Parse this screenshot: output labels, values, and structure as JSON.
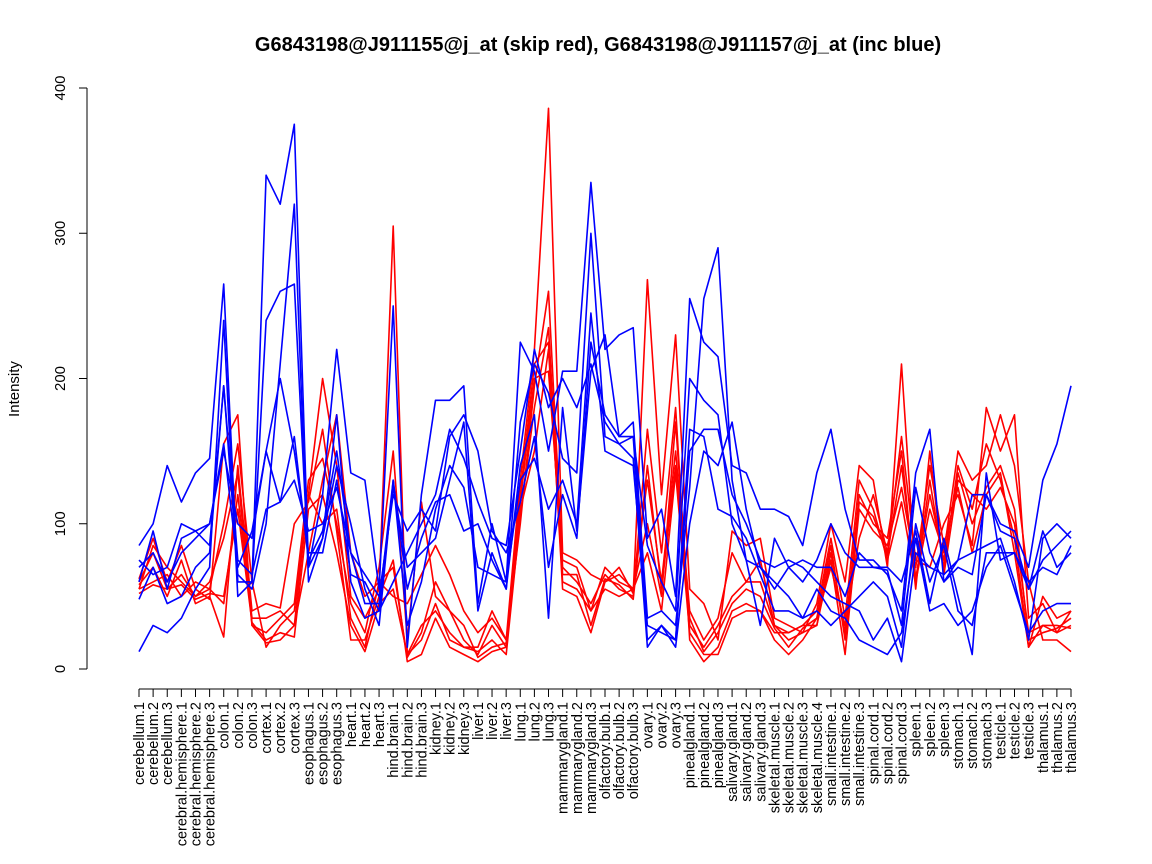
{
  "chart_data": {
    "type": "line",
    "title": "G6843198@J911155@j_at (skip red), G6843198@J911157@j_at (inc blue)",
    "xlabel": "",
    "ylabel": "Intensity",
    "ylim": [
      0,
      400
    ],
    "yticks": [
      0,
      100,
      200,
      300,
      400
    ],
    "grid": false,
    "categories": [
      "cerebellum.1",
      "cerebellum.2",
      "cerebellum.3",
      "cerebral.hemisphere.1",
      "cerebral.hemisphere.2",
      "cerebral.hemisphere.3",
      "colon.1",
      "colon.2",
      "colon.3",
      "cortex.1",
      "cortex.2",
      "cortex.3",
      "esophagus.1",
      "esophagus.2",
      "esophagus.3",
      "heart.1",
      "heart.2",
      "heart.3",
      "hind.brain.1",
      "hind.brain.2",
      "hind.brain.3",
      "kidney.1",
      "kidney.2",
      "kidney.3",
      "liver.1",
      "liver.2",
      "liver.3",
      "lung.1",
      "lung.2",
      "lung.3",
      "mammarygland.1",
      "mammarygland.2",
      "mammarygland.3",
      "olfactory.bulb.1",
      "olfactory.bulb.2",
      "olfactory.bulb.3",
      "ovary.1",
      "ovary.2",
      "ovary.3",
      "pinealgland.1",
      "pinealgland.2",
      "pinealgland.3",
      "salivary.gland.1",
      "salivary.gland.2",
      "salivary.gland.3",
      "skeletal.muscle.1",
      "skeletal.muscle.2",
      "skeletal.muscle.3",
      "skeletal.muscle.4",
      "small.intestine.1",
      "small.intestine.2",
      "small.intestine.3",
      "spinal.cord.1",
      "spinal.cord.2",
      "spinal.cord.3",
      "spleen.1",
      "spleen.2",
      "spleen.3",
      "stomach.1",
      "stomach.2",
      "stomach.3",
      "testicle.1",
      "testicle.2",
      "testicle.3",
      "thalamus.1",
      "thalamus.2",
      "thalamus.3"
    ],
    "series_colors": {
      "skip": "#ff0000",
      "inc": "#0000ff"
    },
    "series": [
      {
        "group": "skip",
        "values": [
          62,
          90,
          60,
          85,
          55,
          48,
          155,
          175,
          30,
          18,
          20,
          30,
          80,
          130,
          175,
          80,
          50,
          60,
          50,
          45,
          65,
          85,
          65,
          40,
          25,
          35,
          20,
          130,
          220,
          386,
          80,
          75,
          65,
          60,
          70,
          52,
          268,
          120,
          230,
          55,
          45,
          20,
          95,
          85,
          90,
          35,
          30,
          25,
          45,
          100,
          60,
          140,
          130,
          70,
          210,
          60,
          110,
          80,
          150,
          130,
          140,
          175,
          140,
          60,
          20,
          20,
          12
        ]
      },
      {
        "group": "skip",
        "values": [
          55,
          60,
          65,
          50,
          60,
          55,
          100,
          155,
          60,
          15,
          30,
          40,
          120,
          200,
          140,
          50,
          35,
          55,
          305,
          10,
          30,
          40,
          25,
          15,
          15,
          40,
          20,
          100,
          195,
          260,
          70,
          60,
          45,
          65,
          55,
          50,
          165,
          80,
          180,
          20,
          5,
          15,
          40,
          45,
          40,
          20,
          10,
          20,
          35,
          70,
          30,
          90,
          120,
          80,
          160,
          75,
          70,
          100,
          120,
          85,
          180,
          150,
          175,
          35,
          45,
          25,
          30
        ]
      },
      {
        "group": "skip",
        "values": [
          60,
          80,
          55,
          65,
          50,
          60,
          90,
          135,
          30,
          25,
          35,
          45,
          130,
          145,
          100,
          45,
          25,
          70,
          150,
          20,
          115,
          50,
          40,
          20,
          10,
          30,
          15,
          110,
          150,
          220,
          60,
          55,
          40,
          70,
          60,
          55,
          130,
          60,
          150,
          40,
          20,
          35,
          80,
          60,
          75,
          30,
          25,
          30,
          40,
          90,
          35,
          130,
          110,
          75,
          115,
          60,
          130,
          70,
          140,
          110,
          155,
          130,
          90,
          15,
          50,
          35,
          40
        ]
      },
      {
        "group": "skip",
        "values": [
          58,
          70,
          50,
          75,
          45,
          50,
          22,
          140,
          40,
          45,
          42,
          100,
          115,
          165,
          95,
          20,
          20,
          50,
          75,
          5,
          10,
          35,
          15,
          10,
          5,
          12,
          15,
          120,
          210,
          225,
          55,
          50,
          25,
          60,
          65,
          55,
          80,
          40,
          135,
          25,
          10,
          10,
          35,
          40,
          40,
          25,
          25,
          30,
          30,
          80,
          25,
          120,
          100,
          90,
          150,
          55,
          150,
          65,
          130,
          120,
          110,
          125,
          100,
          25,
          30,
          30,
          28
        ]
      },
      {
        "group": "skip",
        "values": [
          55,
          85,
          70,
          60,
          50,
          55,
          45,
          120,
          35,
          35,
          40,
          30,
          120,
          100,
          110,
          35,
          15,
          60,
          70,
          8,
          25,
          60,
          40,
          30,
          8,
          15,
          18,
          115,
          200,
          205,
          75,
          70,
          40,
          55,
          50,
          55,
          100,
          50,
          170,
          30,
          15,
          30,
          50,
          60,
          60,
          30,
          20,
          25,
          30,
          75,
          10,
          110,
          95,
          85,
          125,
          70,
          140,
          85,
          125,
          80,
          120,
          135,
          80,
          15,
          30,
          25,
          40
        ]
      },
      {
        "group": "skip",
        "values": [
          52,
          58,
          55,
          58,
          48,
          52,
          50,
          110,
          32,
          20,
          25,
          22,
          110,
          120,
          80,
          30,
          12,
          45,
          55,
          10,
          20,
          45,
          20,
          15,
          12,
          20,
          10,
          105,
          180,
          235,
          65,
          65,
          30,
          62,
          58,
          48,
          140,
          55,
          140,
          35,
          12,
          25,
          45,
          55,
          50,
          28,
          15,
          28,
          35,
          85,
          20,
          115,
          105,
          78,
          140,
          62,
          120,
          75,
          135,
          100,
          125,
          140,
          110,
          20,
          25,
          28,
          35
        ]
      },
      {
        "group": "inc",
        "values": [
          85,
          100,
          140,
          115,
          135,
          145,
          265,
          60,
          60,
          340,
          320,
          375,
          70,
          120,
          220,
          135,
          130,
          55,
          250,
          15,
          120,
          185,
          185,
          195,
          45,
          100,
          60,
          225,
          205,
          150,
          205,
          205,
          335,
          220,
          230,
          235,
          90,
          110,
          50,
          255,
          225,
          215,
          140,
          135,
          110,
          110,
          105,
          85,
          135,
          165,
          110,
          75,
          75,
          65,
          40,
          135,
          165,
          60,
          75,
          120,
          120,
          100,
          95,
          70,
          130,
          155,
          195
        ]
      },
      {
        "group": "inc",
        "values": [
          48,
          70,
          45,
          50,
          70,
          80,
          195,
          65,
          55,
          100,
          210,
          320,
          60,
          90,
          175,
          60,
          35,
          40,
          125,
          70,
          80,
          90,
          130,
          170,
          40,
          80,
          55,
          170,
          210,
          190,
          145,
          135,
          300,
          160,
          155,
          160,
          85,
          60,
          40,
          200,
          185,
          175,
          100,
          75,
          70,
          55,
          70,
          60,
          75,
          100,
          80,
          70,
          70,
          68,
          30,
          125,
          80,
          60,
          70,
          65,
          120,
          95,
          90,
          55,
          95,
          70,
          80
        ]
      },
      {
        "group": "inc",
        "values": [
          12,
          30,
          25,
          35,
          55,
          70,
          240,
          50,
          60,
          240,
          260,
          265,
          70,
          90,
          140,
          100,
          55,
          30,
          130,
          30,
          60,
          110,
          140,
          125,
          70,
          65,
          60,
          130,
          145,
          110,
          130,
          100,
          245,
          150,
          145,
          140,
          30,
          25,
          20,
          165,
          160,
          110,
          105,
          90,
          65,
          40,
          40,
          35,
          55,
          40,
          35,
          20,
          15,
          10,
          25,
          90,
          40,
          45,
          30,
          40,
          70,
          85,
          55,
          25,
          40,
          45,
          45
        ]
      },
      {
        "group": "inc",
        "values": [
          70,
          80,
          60,
          80,
          90,
          100,
          150,
          100,
          90,
          150,
          200,
          150,
          80,
          80,
          130,
          65,
          60,
          40,
          60,
          80,
          100,
          120,
          165,
          145,
          115,
          90,
          85,
          150,
          220,
          180,
          200,
          180,
          210,
          170,
          155,
          145,
          15,
          30,
          20,
          150,
          165,
          165,
          120,
          100,
          75,
          70,
          75,
          70,
          60,
          50,
          45,
          40,
          20,
          35,
          5,
          80,
          70,
          65,
          75,
          80,
          85,
          90,
          60,
          20,
          90,
          100,
          90
        ]
      },
      {
        "group": "inc",
        "values": [
          60,
          95,
          55,
          90,
          95,
          85,
          195,
          75,
          65,
          110,
          115,
          160,
          75,
          95,
          150,
          80,
          65,
          50,
          120,
          95,
          110,
          95,
          160,
          175,
          150,
          95,
          80,
          115,
          160,
          70,
          120,
          90,
          225,
          175,
          160,
          160,
          20,
          30,
          15,
          100,
          150,
          140,
          170,
          110,
          70,
          60,
          50,
          35,
          40,
          30,
          40,
          50,
          60,
          50,
          15,
          100,
          60,
          85,
          40,
          30,
          80,
          80,
          80,
          60,
          70,
          65,
          85
        ]
      },
      {
        "group": "inc",
        "values": [
          75,
          65,
          70,
          100,
          95,
          100,
          155,
          70,
          95,
          150,
          115,
          130,
          95,
          100,
          125,
          80,
          45,
          45,
          130,
          55,
          90,
          115,
          120,
          95,
          100,
          75,
          55,
          140,
          175,
          35,
          180,
          95,
          205,
          230,
          160,
          170,
          35,
          40,
          30,
          125,
          255,
          290,
          130,
          75,
          30,
          90,
          70,
          75,
          70,
          70,
          50,
          80,
          70,
          70,
          60,
          95,
          45,
          90,
          50,
          10,
          135,
          75,
          80,
          55,
          75,
          85,
          95
        ]
      }
    ]
  }
}
